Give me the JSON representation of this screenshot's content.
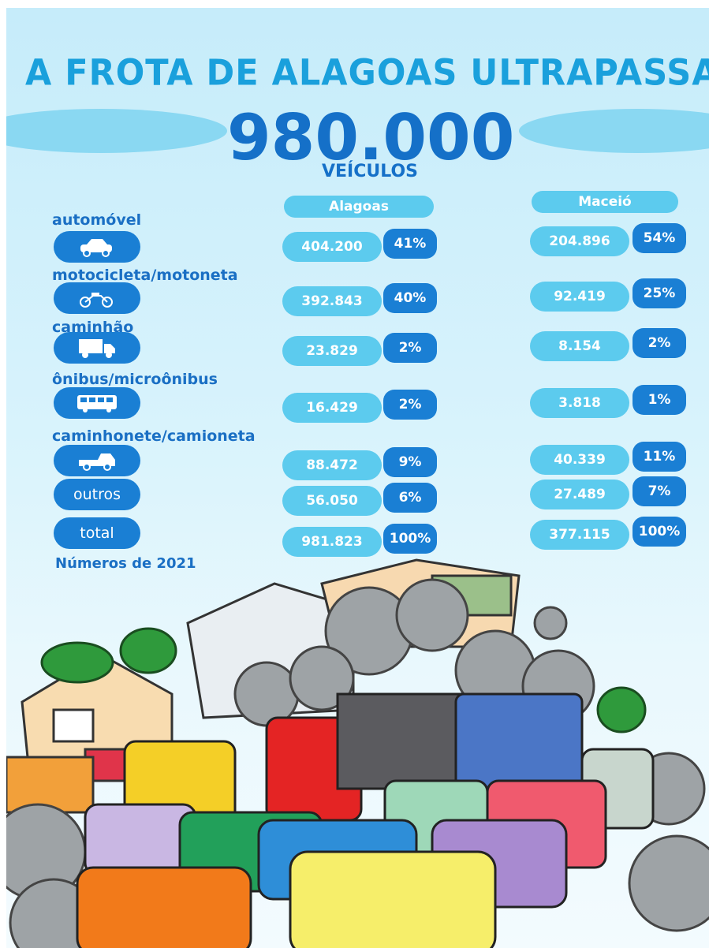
{
  "header": {
    "title": "A FROTA DE ALAGOAS ULTRAPASSA OS",
    "number": "980.000",
    "unit": "VEÍCULOS"
  },
  "table": {
    "columns": [
      "Alagoas",
      "Maceió"
    ],
    "rows": [
      [
        "automóvel",
        "404.200",
        "41%",
        "204.896",
        "54%"
      ],
      [
        "motocicleta/motoneta",
        "392.843",
        "40%",
        "92.419",
        "25%"
      ],
      [
        "caminhão",
        "23.829",
        "2%",
        "8.154",
        "2%"
      ],
      [
        "ônibus/microônibus",
        "16.429",
        "2%",
        "3.818",
        "1%"
      ],
      [
        "caminhonete/camioneta",
        "88.472",
        "9%",
        "40.339",
        "11%"
      ],
      [
        "outros",
        "56.050",
        "6%",
        "27.489",
        "7%"
      ],
      [
        "total",
        "981.823",
        "100%",
        "377.115",
        "100%"
      ]
    ]
  },
  "footnote": "Números de 2021"
}
